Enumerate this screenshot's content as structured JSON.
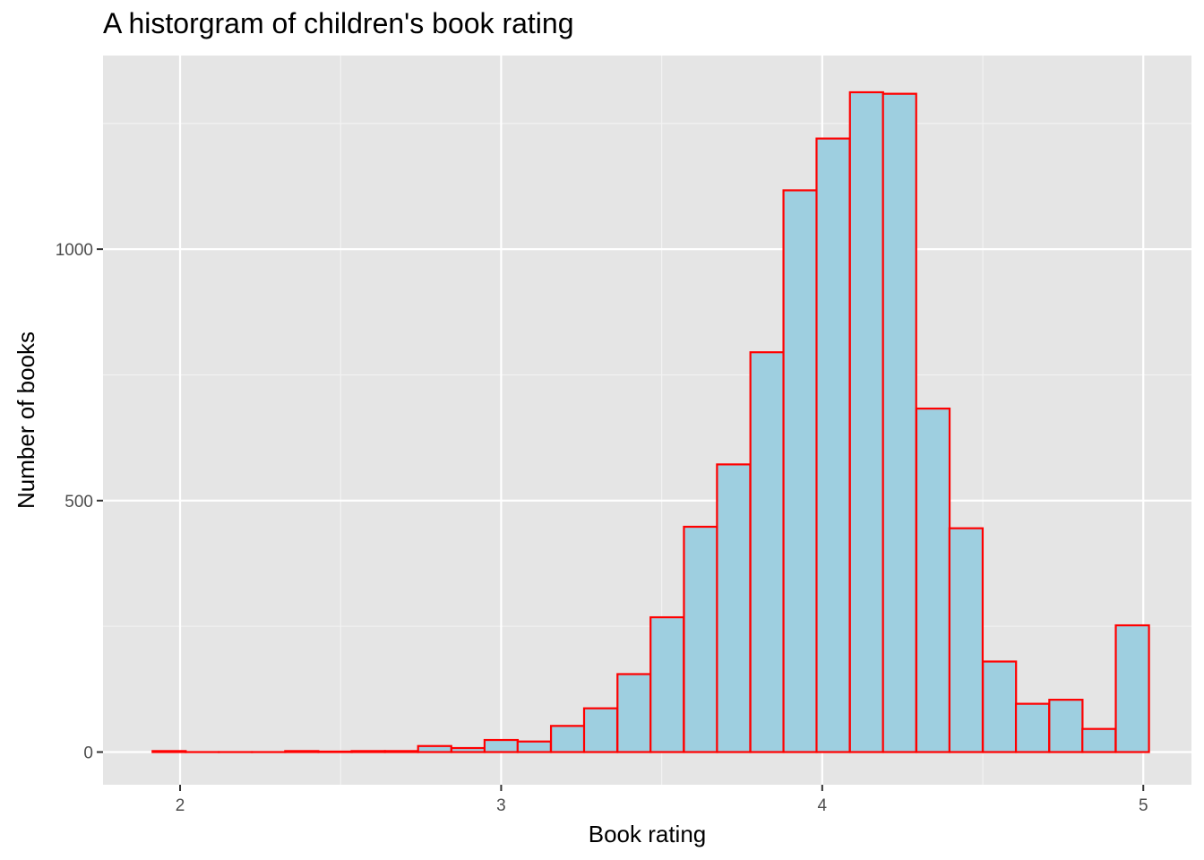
{
  "chart_data": {
    "type": "bar",
    "title": "A historgram of children's book rating",
    "xlabel": "Book rating",
    "ylabel": "Number of books",
    "xlim": [
      1.76,
      5.15
    ],
    "ylim": [
      -65,
      1385
    ],
    "x_ticks": [
      2,
      3,
      4,
      5
    ],
    "x_tick_labels": [
      "2",
      "3",
      "4",
      "5"
    ],
    "y_ticks": [
      0,
      500,
      1000
    ],
    "y_tick_labels": [
      "0",
      "500",
      "1000"
    ],
    "bin_width": 0.1034,
    "bin_centers": [
      1.966,
      2.069,
      2.172,
      2.276,
      2.379,
      2.483,
      2.586,
      2.69,
      2.793,
      2.897,
      3.0,
      3.103,
      3.207,
      3.31,
      3.414,
      3.517,
      3.621,
      3.724,
      3.828,
      3.931,
      4.034,
      4.138,
      4.241,
      4.345,
      4.448,
      4.552,
      4.655,
      4.759,
      4.862,
      4.966
    ],
    "values": [
      2,
      0,
      0,
      0,
      2,
      1,
      2,
      2,
      12,
      8,
      24,
      21,
      52,
      87,
      155,
      268,
      448,
      572,
      795,
      1117,
      1220,
      1312,
      1309,
      683,
      445,
      180,
      96,
      104,
      46,
      252
    ],
    "fill_color": "#9ecfe0",
    "edge_color": "#ff0000",
    "panel_color": "#e5e5e5",
    "grid": true,
    "legend": "none"
  }
}
